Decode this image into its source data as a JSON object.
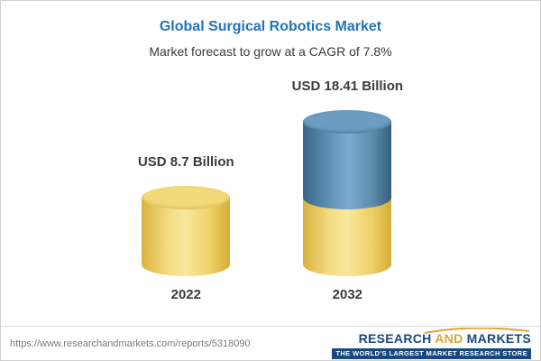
{
  "header": {
    "title": "Global Surgical Robotics Market",
    "subtitle": "Market forecast to grow at a CAGR of 7.8%"
  },
  "chart_data": {
    "type": "bar",
    "title": "Global Surgical Robotics Market",
    "subtitle": "Market forecast to grow at a CAGR of 7.8%",
    "categories": [
      "2022",
      "2032"
    ],
    "values": [
      8.7,
      18.41
    ],
    "value_labels": [
      "USD 8.7 Billion",
      "USD 18.41 Billion"
    ],
    "unit": "USD Billion",
    "cagr_percent": 7.8,
    "xlabel": "",
    "ylabel": "",
    "legend": "none",
    "grid": false,
    "bar_style": "cylinder",
    "colors": {
      "base_yellow": "#eed066",
      "growth_blue": "#5c8aa8",
      "title_blue": "#2273b8"
    }
  },
  "footer": {
    "url": "https://www.researchandmarkets.com/reports/5318090",
    "logo_research": "RESEARCH ",
    "logo_and": "AND ",
    "logo_markets": "MARKETS",
    "tagline": "THE WORLD'S LARGEST MARKET RESEARCH STORE"
  }
}
